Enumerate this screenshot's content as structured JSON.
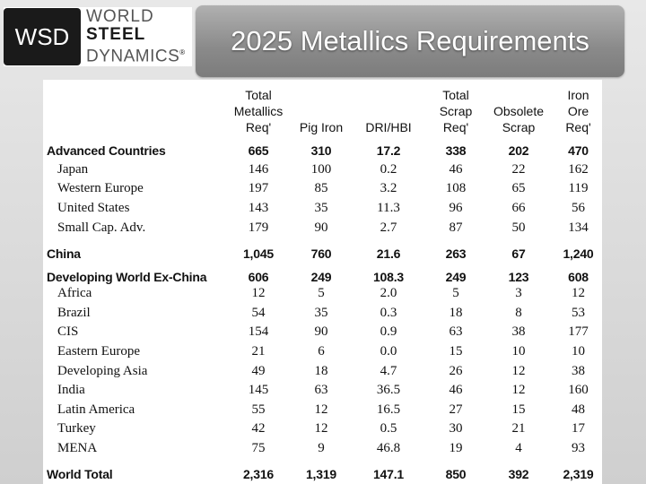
{
  "logo": {
    "box": "WSD",
    "line1": "WORLD",
    "line2": "STEEL",
    "line3": "DYNAMICS",
    "mark": "®"
  },
  "title": "2025 Metallics Requirements",
  "table": {
    "headers": [
      {
        "key": "region",
        "lines": []
      },
      {
        "key": "total_metallics",
        "lines": [
          "Total",
          "Metallics",
          "Req'"
        ]
      },
      {
        "key": "pig_iron",
        "lines": [
          "Pig Iron"
        ]
      },
      {
        "key": "dri_hbi",
        "lines": [
          "DRI/HBI"
        ]
      },
      {
        "key": "total_scrap",
        "lines": [
          "Total",
          "Scrap",
          "Req'"
        ]
      },
      {
        "key": "obsolete_scrap",
        "lines": [
          "Obsolete",
          "Scrap"
        ]
      },
      {
        "key": "iron_ore",
        "lines": [
          "Iron",
          "Ore",
          "Req'"
        ]
      }
    ],
    "rows": [
      {
        "name": "Advanced Countries",
        "level": "major",
        "values": [
          "665",
          "310",
          "17.2",
          "338",
          "202",
          "470"
        ]
      },
      {
        "name": "Japan",
        "level": "minor",
        "values": [
          "146",
          "100",
          "0.2",
          "46",
          "22",
          "162"
        ]
      },
      {
        "name": "Western Europe",
        "level": "minor",
        "values": [
          "197",
          "85",
          "3.2",
          "108",
          "65",
          "119"
        ]
      },
      {
        "name": "United States",
        "level": "minor",
        "values": [
          "143",
          "35",
          "11.3",
          "96",
          "66",
          "56"
        ]
      },
      {
        "name": "Small Cap. Adv.",
        "level": "minor",
        "values": [
          "179",
          "90",
          "2.7",
          "87",
          "50",
          "134"
        ]
      },
      {
        "name": "China",
        "level": "major",
        "values": [
          "1,045",
          "760",
          "21.6",
          "263",
          "67",
          "1,240"
        ]
      },
      {
        "name": "Developing World Ex-China",
        "level": "major",
        "values": [
          "606",
          "249",
          "108.3",
          "249",
          "123",
          "608"
        ]
      },
      {
        "name": "Africa",
        "level": "minor",
        "values": [
          "12",
          "5",
          "2.0",
          "5",
          "3",
          "12"
        ]
      },
      {
        "name": "Brazil",
        "level": "minor",
        "values": [
          "54",
          "35",
          "0.3",
          "18",
          "8",
          "53"
        ]
      },
      {
        "name": "CIS",
        "level": "minor",
        "values": [
          "154",
          "90",
          "0.9",
          "63",
          "38",
          "177"
        ]
      },
      {
        "name": "Eastern Europe",
        "level": "minor",
        "values": [
          "21",
          "6",
          "0.0",
          "15",
          "10",
          "10"
        ]
      },
      {
        "name": "Developing Asia",
        "level": "minor",
        "values": [
          "49",
          "18",
          "4.7",
          "26",
          "12",
          "38"
        ]
      },
      {
        "name": "India",
        "level": "minor",
        "values": [
          "145",
          "63",
          "36.5",
          "46",
          "12",
          "160"
        ]
      },
      {
        "name": "Latin America",
        "level": "minor",
        "values": [
          "55",
          "12",
          "16.5",
          "27",
          "15",
          "48"
        ]
      },
      {
        "name": "Turkey",
        "level": "minor",
        "values": [
          "42",
          "12",
          "0.5",
          "30",
          "21",
          "17"
        ]
      },
      {
        "name": "MENA",
        "level": "minor",
        "values": [
          "75",
          "9",
          "46.8",
          "19",
          "4",
          "93"
        ]
      },
      {
        "name": "World Total",
        "level": "major",
        "values": [
          "2,316",
          "1,319",
          "147.1",
          "850",
          "392",
          "2,319"
        ]
      }
    ]
  }
}
